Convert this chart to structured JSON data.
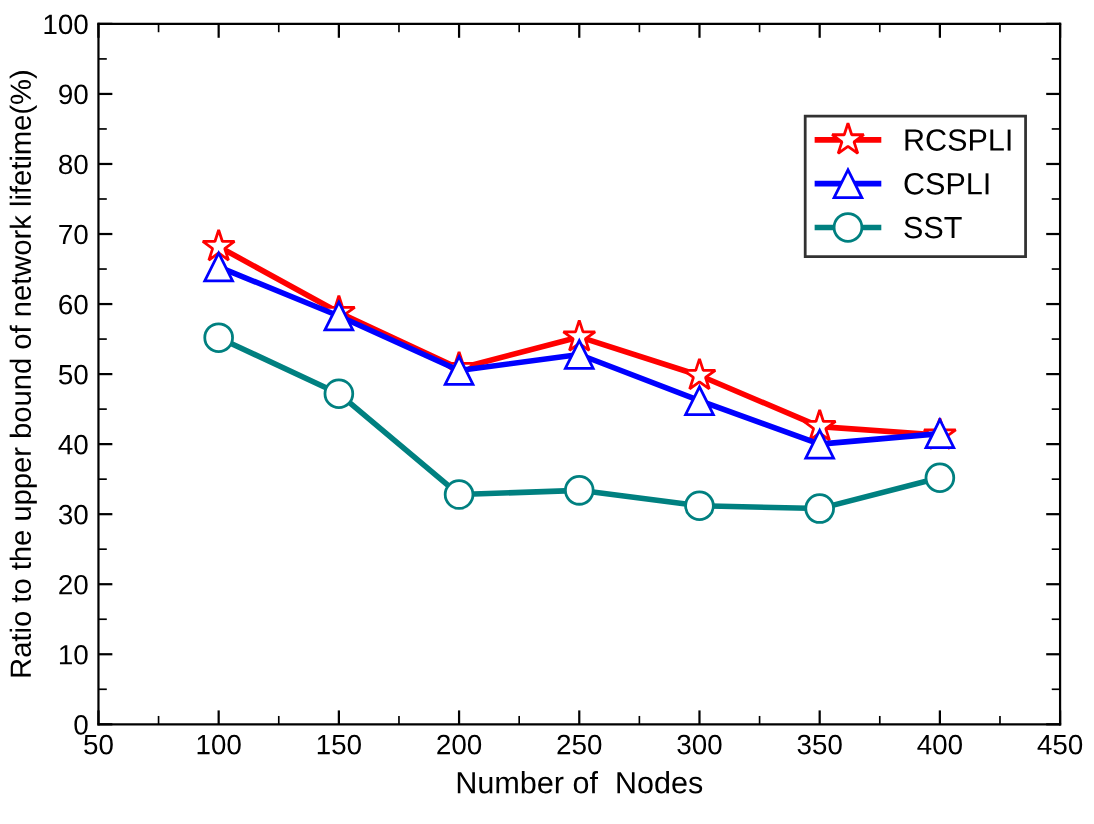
{
  "chart_data": {
    "type": "line",
    "xlabel": "Number of  Nodes",
    "ylabel": "Ratio to the upper bound of network lifetime(%)",
    "x": [
      100,
      150,
      200,
      250,
      300,
      350,
      400
    ],
    "series": [
      {
        "name": "RCSPLI",
        "color": "#ff0000",
        "marker": "star",
        "values": [
          68.2,
          58.8,
          50.8,
          55.3,
          49.8,
          42.5,
          41.3
        ]
      },
      {
        "name": "CSPLI",
        "color": "#0000ff",
        "marker": "triangle",
        "values": [
          65.3,
          58.3,
          50.5,
          52.8,
          46.2,
          40.0,
          41.5
        ]
      },
      {
        "name": "SST",
        "color": "#008080",
        "marker": "circle",
        "values": [
          55.2,
          47.2,
          32.8,
          33.4,
          31.2,
          30.8,
          35.2
        ]
      }
    ],
    "xlim": [
      50,
      450
    ],
    "xticks": [
      50,
      100,
      150,
      200,
      250,
      300,
      350,
      400,
      450
    ],
    "ylim": [
      0,
      100
    ],
    "yticks": [
      0,
      10,
      20,
      30,
      40,
      50,
      60,
      70,
      80,
      90,
      100
    ],
    "grid": false,
    "legend": "top right",
    "line_style": "solid"
  }
}
